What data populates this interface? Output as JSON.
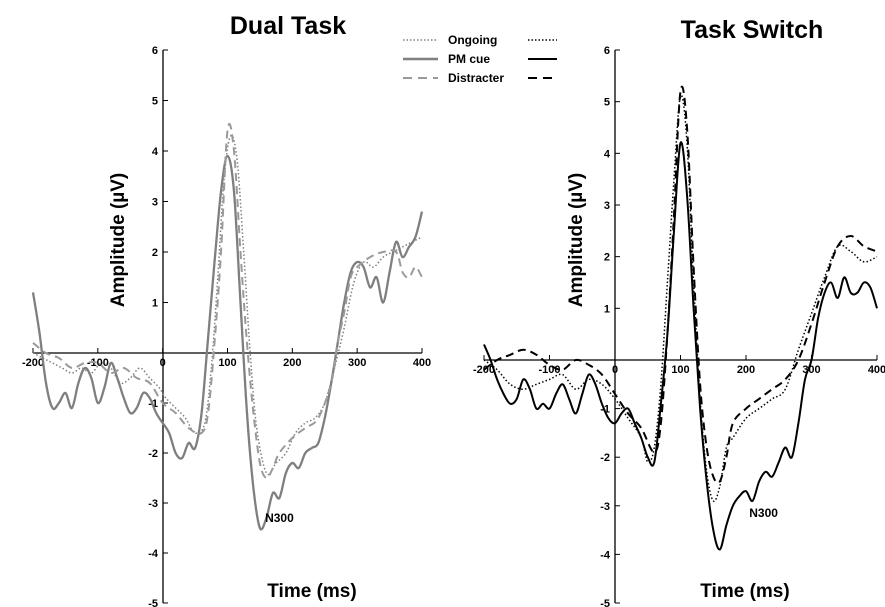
{
  "legend": {
    "entries": [
      "Ongoing",
      "PM cue",
      "Distracter"
    ]
  },
  "chart_data": [
    {
      "type": "line",
      "title": "Dual Task",
      "xlabel": "Time (ms)",
      "ylabel": "Amplitude (µV)",
      "xlim": [
        -200,
        400
      ],
      "ylim": [
        -5,
        6
      ],
      "xticks": [
        "-200",
        "-100",
        "0",
        "100",
        "200",
        "300",
        "400"
      ],
      "yticks": [
        "6",
        "5",
        "4",
        "3",
        "2",
        "1",
        "-1",
        "-2",
        "-3",
        "-4",
        "-5"
      ],
      "annotation": {
        "text": "N300",
        "x": 158,
        "y": -3.3
      },
      "color": "#7f7f7f",
      "series": [
        {
          "name": "Ongoing",
          "style": "dotted",
          "x": [
            -200,
            -185,
            -170,
            -155,
            -140,
            -125,
            -110,
            -95,
            -80,
            -65,
            -50,
            -35,
            -20,
            -5,
            5,
            20,
            35,
            50,
            65,
            75,
            85,
            95,
            105,
            115,
            125,
            135,
            145,
            160,
            175,
            190,
            205,
            220,
            235,
            250,
            265,
            280,
            295,
            310,
            325,
            340,
            355,
            370,
            385,
            400
          ],
          "y": [
            0.0,
            -0.1,
            -0.2,
            -0.3,
            -0.4,
            -0.3,
            -0.4,
            -0.2,
            -0.3,
            -0.6,
            -0.5,
            -0.3,
            -0.5,
            -0.7,
            -0.9,
            -1.1,
            -1.3,
            -1.6,
            -1.4,
            -0.3,
            1.5,
            3.5,
            4.3,
            3.8,
            2.0,
            0.0,
            -1.5,
            -2.4,
            -2.2,
            -2.0,
            -1.6,
            -1.4,
            -1.3,
            -1.0,
            -0.3,
            0.5,
            1.4,
            1.8,
            1.7,
            1.9,
            2.0,
            2.1,
            2.2,
            2.3
          ]
        },
        {
          "name": "PM cue",
          "style": "solid",
          "x": [
            -200,
            -190,
            -180,
            -170,
            -160,
            -150,
            -140,
            -130,
            -120,
            -110,
            -100,
            -90,
            -80,
            -70,
            -60,
            -50,
            -40,
            -30,
            -20,
            -10,
            0,
            10,
            20,
            30,
            40,
            50,
            60,
            70,
            80,
            90,
            100,
            110,
            120,
            130,
            140,
            150,
            160,
            170,
            180,
            190,
            200,
            210,
            220,
            230,
            240,
            250,
            260,
            270,
            280,
            290,
            300,
            310,
            320,
            330,
            340,
            350,
            360,
            370,
            380,
            390,
            400
          ],
          "y": [
            1.2,
            0.4,
            -0.6,
            -1.1,
            -1.0,
            -0.8,
            -1.1,
            -0.6,
            -0.3,
            -0.5,
            -1.0,
            -0.7,
            -0.2,
            -0.5,
            -0.9,
            -1.2,
            -1.1,
            -0.8,
            -0.9,
            -1.2,
            -1.4,
            -1.6,
            -2.0,
            -2.1,
            -1.8,
            -1.9,
            -1.2,
            0.3,
            1.8,
            3.2,
            3.9,
            3.2,
            1.0,
            -1.2,
            -2.7,
            -3.5,
            -3.3,
            -2.8,
            -2.9,
            -2.4,
            -2.2,
            -2.3,
            -2.0,
            -1.9,
            -1.8,
            -1.3,
            -0.6,
            0.2,
            1.0,
            1.6,
            1.8,
            1.7,
            1.3,
            1.5,
            1.0,
            1.6,
            2.2,
            1.9,
            2.1,
            2.3,
            2.8
          ]
        },
        {
          "name": "Distracter",
          "style": "dashed",
          "x": [
            -200,
            -180,
            -160,
            -140,
            -120,
            -100,
            -80,
            -60,
            -40,
            -20,
            0,
            20,
            40,
            60,
            70,
            80,
            90,
            100,
            110,
            120,
            130,
            140,
            150,
            160,
            170,
            180,
            200,
            220,
            240,
            260,
            270,
            280,
            290,
            300,
            320,
            340,
            360,
            370,
            380,
            390,
            400
          ],
          "y": [
            0.2,
            0.0,
            -0.1,
            -0.3,
            -0.2,
            -0.2,
            -0.4,
            -0.3,
            -0.5,
            -0.6,
            -1.0,
            -1.2,
            -1.5,
            -1.6,
            -1.2,
            0.2,
            2.0,
            4.4,
            4.0,
            2.0,
            0.2,
            -1.2,
            -2.2,
            -2.5,
            -2.3,
            -2.0,
            -1.7,
            -1.5,
            -1.3,
            -0.6,
            0.2,
            0.8,
            1.5,
            1.7,
            1.9,
            2.0,
            2.0,
            1.6,
            1.5,
            1.7,
            1.5
          ]
        }
      ]
    },
    {
      "type": "line",
      "title": "Task Switch",
      "xlabel": "Time (ms)",
      "ylabel": "Amplitude (µV)",
      "xlim": [
        -200,
        400
      ],
      "ylim": [
        -5,
        6
      ],
      "xticks": [
        "-200",
        "-100",
        "0",
        "100",
        "200",
        "300",
        "400"
      ],
      "yticks": [
        "6",
        "5",
        "4",
        "3",
        "2",
        "1",
        "-1",
        "-2",
        "-3",
        "-4",
        "-5"
      ],
      "annotation": {
        "text": "N300",
        "x": 205,
        "y": -3.15
      },
      "color": "#000000",
      "series": [
        {
          "name": "Ongoing",
          "style": "dotted",
          "x": [
            -200,
            -180,
            -160,
            -140,
            -120,
            -100,
            -80,
            -60,
            -40,
            -20,
            0,
            20,
            40,
            50,
            60,
            70,
            80,
            90,
            100,
            110,
            120,
            130,
            140,
            150,
            160,
            170,
            180,
            200,
            220,
            240,
            260,
            280,
            300,
            320,
            340,
            360,
            380,
            400
          ],
          "y": [
            0.0,
            -0.2,
            -0.5,
            -0.6,
            -0.5,
            -0.4,
            -0.3,
            -0.6,
            -0.4,
            -0.5,
            -0.8,
            -1.2,
            -1.6,
            -2.1,
            -1.8,
            -0.5,
            1.5,
            3.5,
            5.1,
            4.2,
            1.5,
            -0.8,
            -2.3,
            -2.9,
            -2.6,
            -1.8,
            -1.6,
            -1.2,
            -1.0,
            -0.8,
            -0.6,
            0.2,
            0.9,
            1.6,
            2.2,
            2.1,
            1.9,
            2.0
          ]
        },
        {
          "name": "PM cue",
          "style": "solid",
          "x": [
            -200,
            -190,
            -180,
            -170,
            -160,
            -150,
            -140,
            -130,
            -120,
            -110,
            -100,
            -90,
            -80,
            -70,
            -60,
            -50,
            -40,
            -30,
            -20,
            -10,
            0,
            10,
            20,
            30,
            40,
            50,
            60,
            70,
            80,
            90,
            100,
            110,
            120,
            130,
            140,
            150,
            160,
            170,
            180,
            190,
            200,
            210,
            220,
            230,
            240,
            250,
            260,
            270,
            280,
            290,
            300,
            310,
            320,
            330,
            340,
            350,
            360,
            370,
            380,
            390,
            400
          ],
          "y": [
            0.3,
            0.0,
            -0.4,
            -0.7,
            -0.9,
            -0.8,
            -0.4,
            -0.6,
            -1.0,
            -0.9,
            -1.0,
            -0.7,
            -0.5,
            -0.8,
            -1.1,
            -0.7,
            -0.3,
            -0.5,
            -0.9,
            -1.2,
            -1.3,
            -1.1,
            -1.0,
            -1.3,
            -1.6,
            -2.0,
            -2.1,
            -0.9,
            0.5,
            2.5,
            4.2,
            3.2,
            1.0,
            -1.0,
            -2.5,
            -3.5,
            -3.9,
            -3.4,
            -3.0,
            -2.8,
            -2.7,
            -2.9,
            -2.5,
            -2.3,
            -2.4,
            -2.1,
            -1.8,
            -2.0,
            -1.3,
            -0.4,
            0.0,
            0.8,
            1.3,
            1.5,
            1.2,
            1.6,
            1.3,
            1.3,
            1.5,
            1.4,
            1.0
          ]
        },
        {
          "name": "Distracter",
          "style": "dashed",
          "x": [
            -200,
            -180,
            -160,
            -140,
            -120,
            -100,
            -80,
            -60,
            -40,
            -20,
            0,
            20,
            40,
            60,
            70,
            80,
            90,
            100,
            110,
            120,
            130,
            140,
            150,
            160,
            170,
            180,
            200,
            220,
            240,
            260,
            280,
            300,
            320,
            340,
            360,
            380,
            400
          ],
          "y": [
            -0.2,
            0.0,
            0.1,
            0.2,
            0.1,
            -0.1,
            -0.2,
            0.0,
            -0.1,
            -0.3,
            -0.7,
            -1.1,
            -1.4,
            -1.9,
            -1.3,
            0.5,
            2.8,
            5.2,
            4.5,
            1.8,
            -0.5,
            -1.8,
            -2.4,
            -2.5,
            -2.0,
            -1.3,
            -1.0,
            -0.8,
            -0.6,
            -0.4,
            0.0,
            0.7,
            1.5,
            2.2,
            2.4,
            2.2,
            2.1
          ]
        }
      ]
    }
  ]
}
